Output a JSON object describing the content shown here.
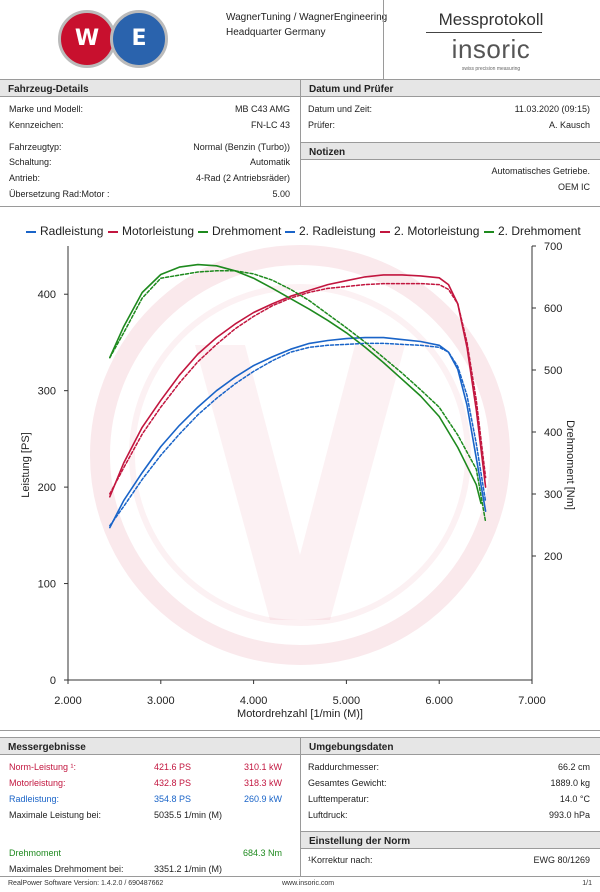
{
  "header": {
    "logo_left": "W",
    "logo_right": "E",
    "company_line1": "WagnerTuning / WagnerEngineering",
    "company_line2": "Headquarter Germany",
    "title": "Messprotokoll",
    "brand": "insoric",
    "brand_tagline": "swiss precision measuring"
  },
  "vehicle": {
    "title": "Fahrzeug-Details",
    "rows": [
      {
        "label": "Marke und Modell:",
        "value": "MB C43 AMG"
      },
      {
        "label": "Kennzeichen:",
        "value": "FN-LC 43"
      },
      {
        "label": "Fahrzeugtyp:",
        "value": "Normal (Benzin (Turbo))"
      },
      {
        "label": "Schaltung:",
        "value": "Automatik"
      },
      {
        "label": "Antrieb:",
        "value": "4-Rad (2 Antriebsräder)"
      },
      {
        "label": "Übersetzung Rad:Motor :",
        "value": "5.00"
      }
    ]
  },
  "date": {
    "title": "Datum und Prüfer",
    "rows": [
      {
        "label": "Datum und Zeit:",
        "value": "11.03.2020 (09:15)"
      },
      {
        "label": "Prüfer:",
        "value": "A. Kausch"
      }
    ]
  },
  "notes": {
    "title": "Notizen",
    "line1": "Automatisches Getriebe.",
    "line2": "OEM IC"
  },
  "colors": {
    "radleistung": "#1a64c8",
    "motorleistung": "#c2163f",
    "drehmoment": "#1e8a1e",
    "watermark": "#c8102e"
  },
  "chart_data": {
    "type": "line",
    "xlabel": "Motordrehzahl [1/min (M)]",
    "ylabel": "Leistung [PS]",
    "y2label": "Drehmoment [Nm]",
    "xlim": [
      2000,
      7000
    ],
    "ylim": [
      0,
      450
    ],
    "y2lim": [
      0,
      700
    ],
    "x_ticks": [
      "2.000",
      "3.000",
      "4.000",
      "5.000",
      "6.000",
      "7.000"
    ],
    "y_ticks": [
      "0",
      "100",
      "200",
      "300",
      "400"
    ],
    "y2_ticks": [
      "200",
      "300",
      "400",
      "500",
      "600",
      "700"
    ],
    "legend_position": "top",
    "series": [
      {
        "name": "Radleistung",
        "axis": "left",
        "dashed": false,
        "color_key": "radleistung",
        "x": [
          2450,
          2600,
          2800,
          3000,
          3200,
          3400,
          3600,
          3800,
          4000,
          4200,
          4400,
          4600,
          4800,
          5000,
          5200,
          5400,
          5600,
          5800,
          6000,
          6100,
          6200,
          6300,
          6400,
          6500
        ],
        "y": [
          158,
          186,
          215,
          242,
          264,
          283,
          300,
          314,
          326,
          335,
          343,
          349,
          352,
          354,
          355,
          355,
          353,
          351,
          347,
          340,
          322,
          285,
          230,
          175
        ]
      },
      {
        "name": "Motorleistung",
        "axis": "left",
        "dashed": false,
        "color_key": "motorleistung",
        "x": [
          2450,
          2600,
          2800,
          3000,
          3200,
          3400,
          3600,
          3800,
          4000,
          4200,
          4400,
          4600,
          4800,
          5000,
          5200,
          5400,
          5600,
          5800,
          6000,
          6100,
          6200,
          6300,
          6400,
          6500
        ],
        "y": [
          190,
          225,
          262,
          290,
          316,
          338,
          355,
          369,
          381,
          390,
          398,
          404,
          410,
          414,
          418,
          420,
          420,
          419,
          417,
          410,
          390,
          345,
          280,
          200
        ]
      },
      {
        "name": "Drehmoment",
        "axis": "right",
        "dashed": false,
        "color_key": "drehmoment",
        "x": [
          2450,
          2600,
          2800,
          3000,
          3200,
          3400,
          3600,
          3800,
          4000,
          4200,
          4400,
          4600,
          4800,
          5000,
          5200,
          5400,
          5600,
          5800,
          6000,
          6200,
          6400,
          6450
        ],
        "y": [
          520,
          570,
          625,
          654,
          666,
          670,
          668,
          660,
          648,
          632,
          615,
          598,
          580,
          560,
          537,
          512,
          485,
          458,
          425,
          375,
          315,
          285
        ]
      },
      {
        "name": "2. Radleistung",
        "axis": "left",
        "dashed": true,
        "color_key": "radleistung",
        "x": [
          2450,
          2600,
          2800,
          3000,
          3200,
          3400,
          3600,
          3800,
          4000,
          4200,
          4400,
          4600,
          4800,
          5000,
          5200,
          5400,
          5600,
          5800,
          6000,
          6100,
          6200,
          6300,
          6400,
          6500
        ],
        "y": [
          160,
          180,
          208,
          233,
          255,
          275,
          292,
          307,
          320,
          331,
          340,
          345,
          347,
          348,
          349,
          349,
          348,
          347,
          345,
          340,
          325,
          295,
          245,
          185
        ]
      },
      {
        "name": "2. Motorleistung",
        "axis": "left",
        "dashed": true,
        "color_key": "motorleistung",
        "x": [
          2450,
          2600,
          2800,
          3000,
          3200,
          3400,
          3600,
          3800,
          4000,
          4200,
          4400,
          4600,
          4800,
          5000,
          5200,
          5400,
          5600,
          5800,
          6000,
          6100,
          6200,
          6300,
          6400,
          6500
        ],
        "y": [
          193,
          220,
          255,
          283,
          308,
          330,
          348,
          364,
          377,
          388,
          396,
          402,
          406,
          408,
          410,
          411,
          411,
          411,
          410,
          405,
          390,
          350,
          290,
          210
        ]
      },
      {
        "name": "2. Drehmoment",
        "axis": "right",
        "dashed": true,
        "color_key": "drehmoment",
        "x": [
          2450,
          2600,
          2800,
          3000,
          3200,
          3400,
          3600,
          3800,
          4000,
          4200,
          4400,
          4600,
          4800,
          5000,
          5200,
          5400,
          5600,
          5800,
          6000,
          6200,
          6400,
          6500
        ],
        "y": [
          520,
          560,
          616,
          648,
          653,
          658,
          660,
          660,
          655,
          645,
          630,
          612,
          590,
          568,
          545,
          520,
          495,
          468,
          440,
          395,
          340,
          255
        ]
      }
    ]
  },
  "results": {
    "title": "Messergebnisse",
    "norm_label": "Norm-Leistung ¹:",
    "norm_ps": "421.6 PS",
    "norm_kw": "310.1 kW",
    "motor_label": "Motorleistung:",
    "motor_ps": "432.8 PS",
    "motor_kw": "318.3 kW",
    "rad_label": "Radleistung:",
    "rad_ps": "354.8 PS",
    "rad_kw": "260.9 kW",
    "max_power_label": "Maximale Leistung bei:",
    "max_power_rpm": "5035.5 1/min (M)",
    "torque_label": "Drehmoment",
    "torque_value": "684.3 Nm",
    "max_torque_label": "Maximales Drehmoment bei:",
    "max_torque_rpm": "3351.2 1/min (M)"
  },
  "environment": {
    "title": "Umgebungsdaten",
    "rows": [
      {
        "label": "Raddurchmesser:",
        "value": "66.2 cm"
      },
      {
        "label": "Gesamtes Gewicht:",
        "value": "1889.0 kg"
      },
      {
        "label": "Lufttemperatur:",
        "value": "14.0 °C"
      },
      {
        "label": "Luftdruck:",
        "value": "993.0 hPa"
      }
    ]
  },
  "norm": {
    "title": "Einstellung der Norm",
    "label": "¹Korrektur nach:",
    "value": "EWG 80/1269"
  },
  "footer": {
    "software": "RealPower Software Version: 1.4.2.0 / 690487662",
    "website": "www.insoric.com",
    "page": "1/1"
  }
}
